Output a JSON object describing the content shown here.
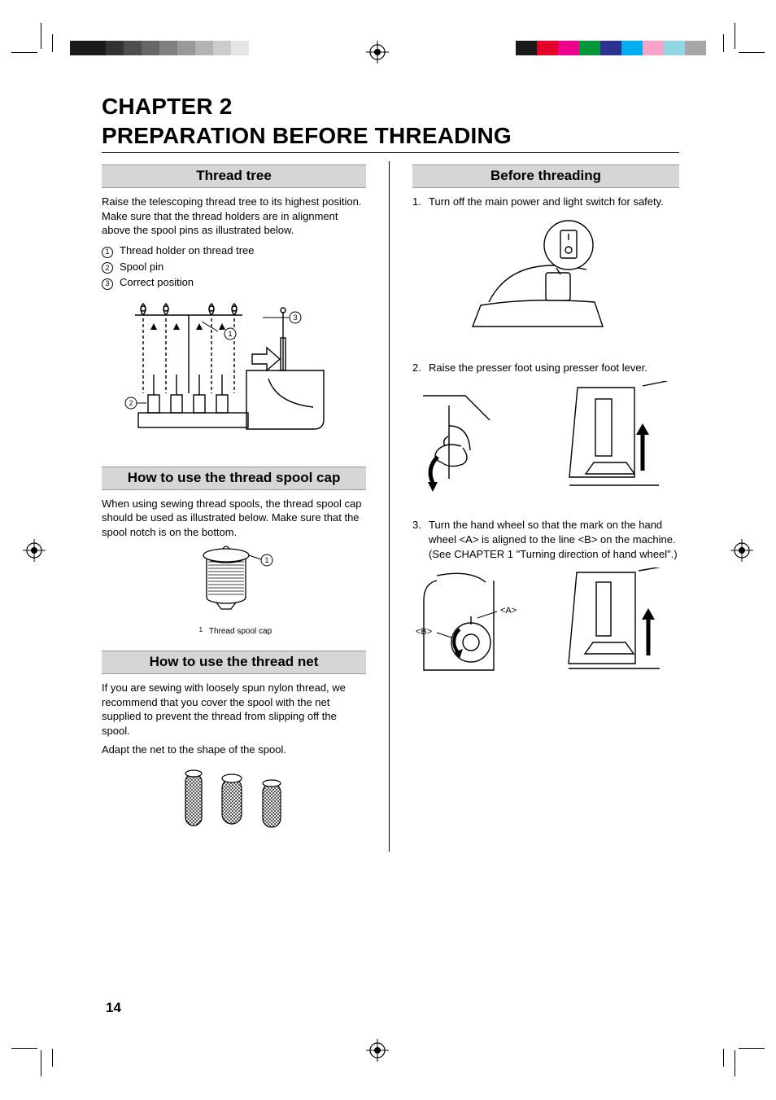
{
  "page_number": "14",
  "chapter_title_line1": "CHAPTER 2",
  "chapter_title_line2": "PREPARATION BEFORE THREADING",
  "left": {
    "sec1": {
      "heading": "Thread tree",
      "body": "Raise the telescoping thread tree to its highest position. Make sure that the thread holders are in alignment above the spool pins as illustrated below.",
      "legend": [
        "Thread holder on thread tree",
        "Spool pin",
        "Correct position"
      ]
    },
    "sec2": {
      "heading": "How to use the thread spool cap",
      "body": "When using sewing thread spools, the thread spool cap should be used as illustrated below. Make sure that the spool notch is on the bottom.",
      "caption": "Thread spool cap"
    },
    "sec3": {
      "heading": "How to use the thread net",
      "body1": "If you are sewing with loosely spun nylon thread, we recommend that you cover the spool with the net supplied to prevent the thread from slipping off the spool.",
      "body2": "Adapt the net to the shape of the spool."
    }
  },
  "right": {
    "heading": "Before threading",
    "steps": [
      "Turn off the main power and light switch for safety.",
      "Raise the presser foot using presser foot lever.",
      "Turn the hand wheel so that the mark on the hand wheel <A> is aligned to the line <B> on the machine. (See CHAPTER 1 \"Turning direction of hand wheel\".)"
    ],
    "fig3_labels": {
      "a": "<A>",
      "b": "<B>"
    }
  },
  "colors": {
    "gray_ramp": [
      "#1a1a1a",
      "#1a1a1a",
      "#333333",
      "#4d4d4d",
      "#666666",
      "#808080",
      "#999999",
      "#b3b3b3",
      "#cccccc",
      "#e6e6e6"
    ],
    "cmy_bar": [
      "#1a1a1a",
      "#e4002b",
      "#ec008c",
      "#009639",
      "#2e3192",
      "#00aeef",
      "#f6a4c9",
      "#92d6e3",
      "#a6a6a6"
    ],
    "gray_widths": [
      22,
      22,
      22,
      22,
      22,
      22,
      22,
      22,
      22,
      22
    ],
    "cmy_widths": [
      26,
      26,
      26,
      26,
      26,
      26,
      26,
      26,
      26
    ]
  }
}
